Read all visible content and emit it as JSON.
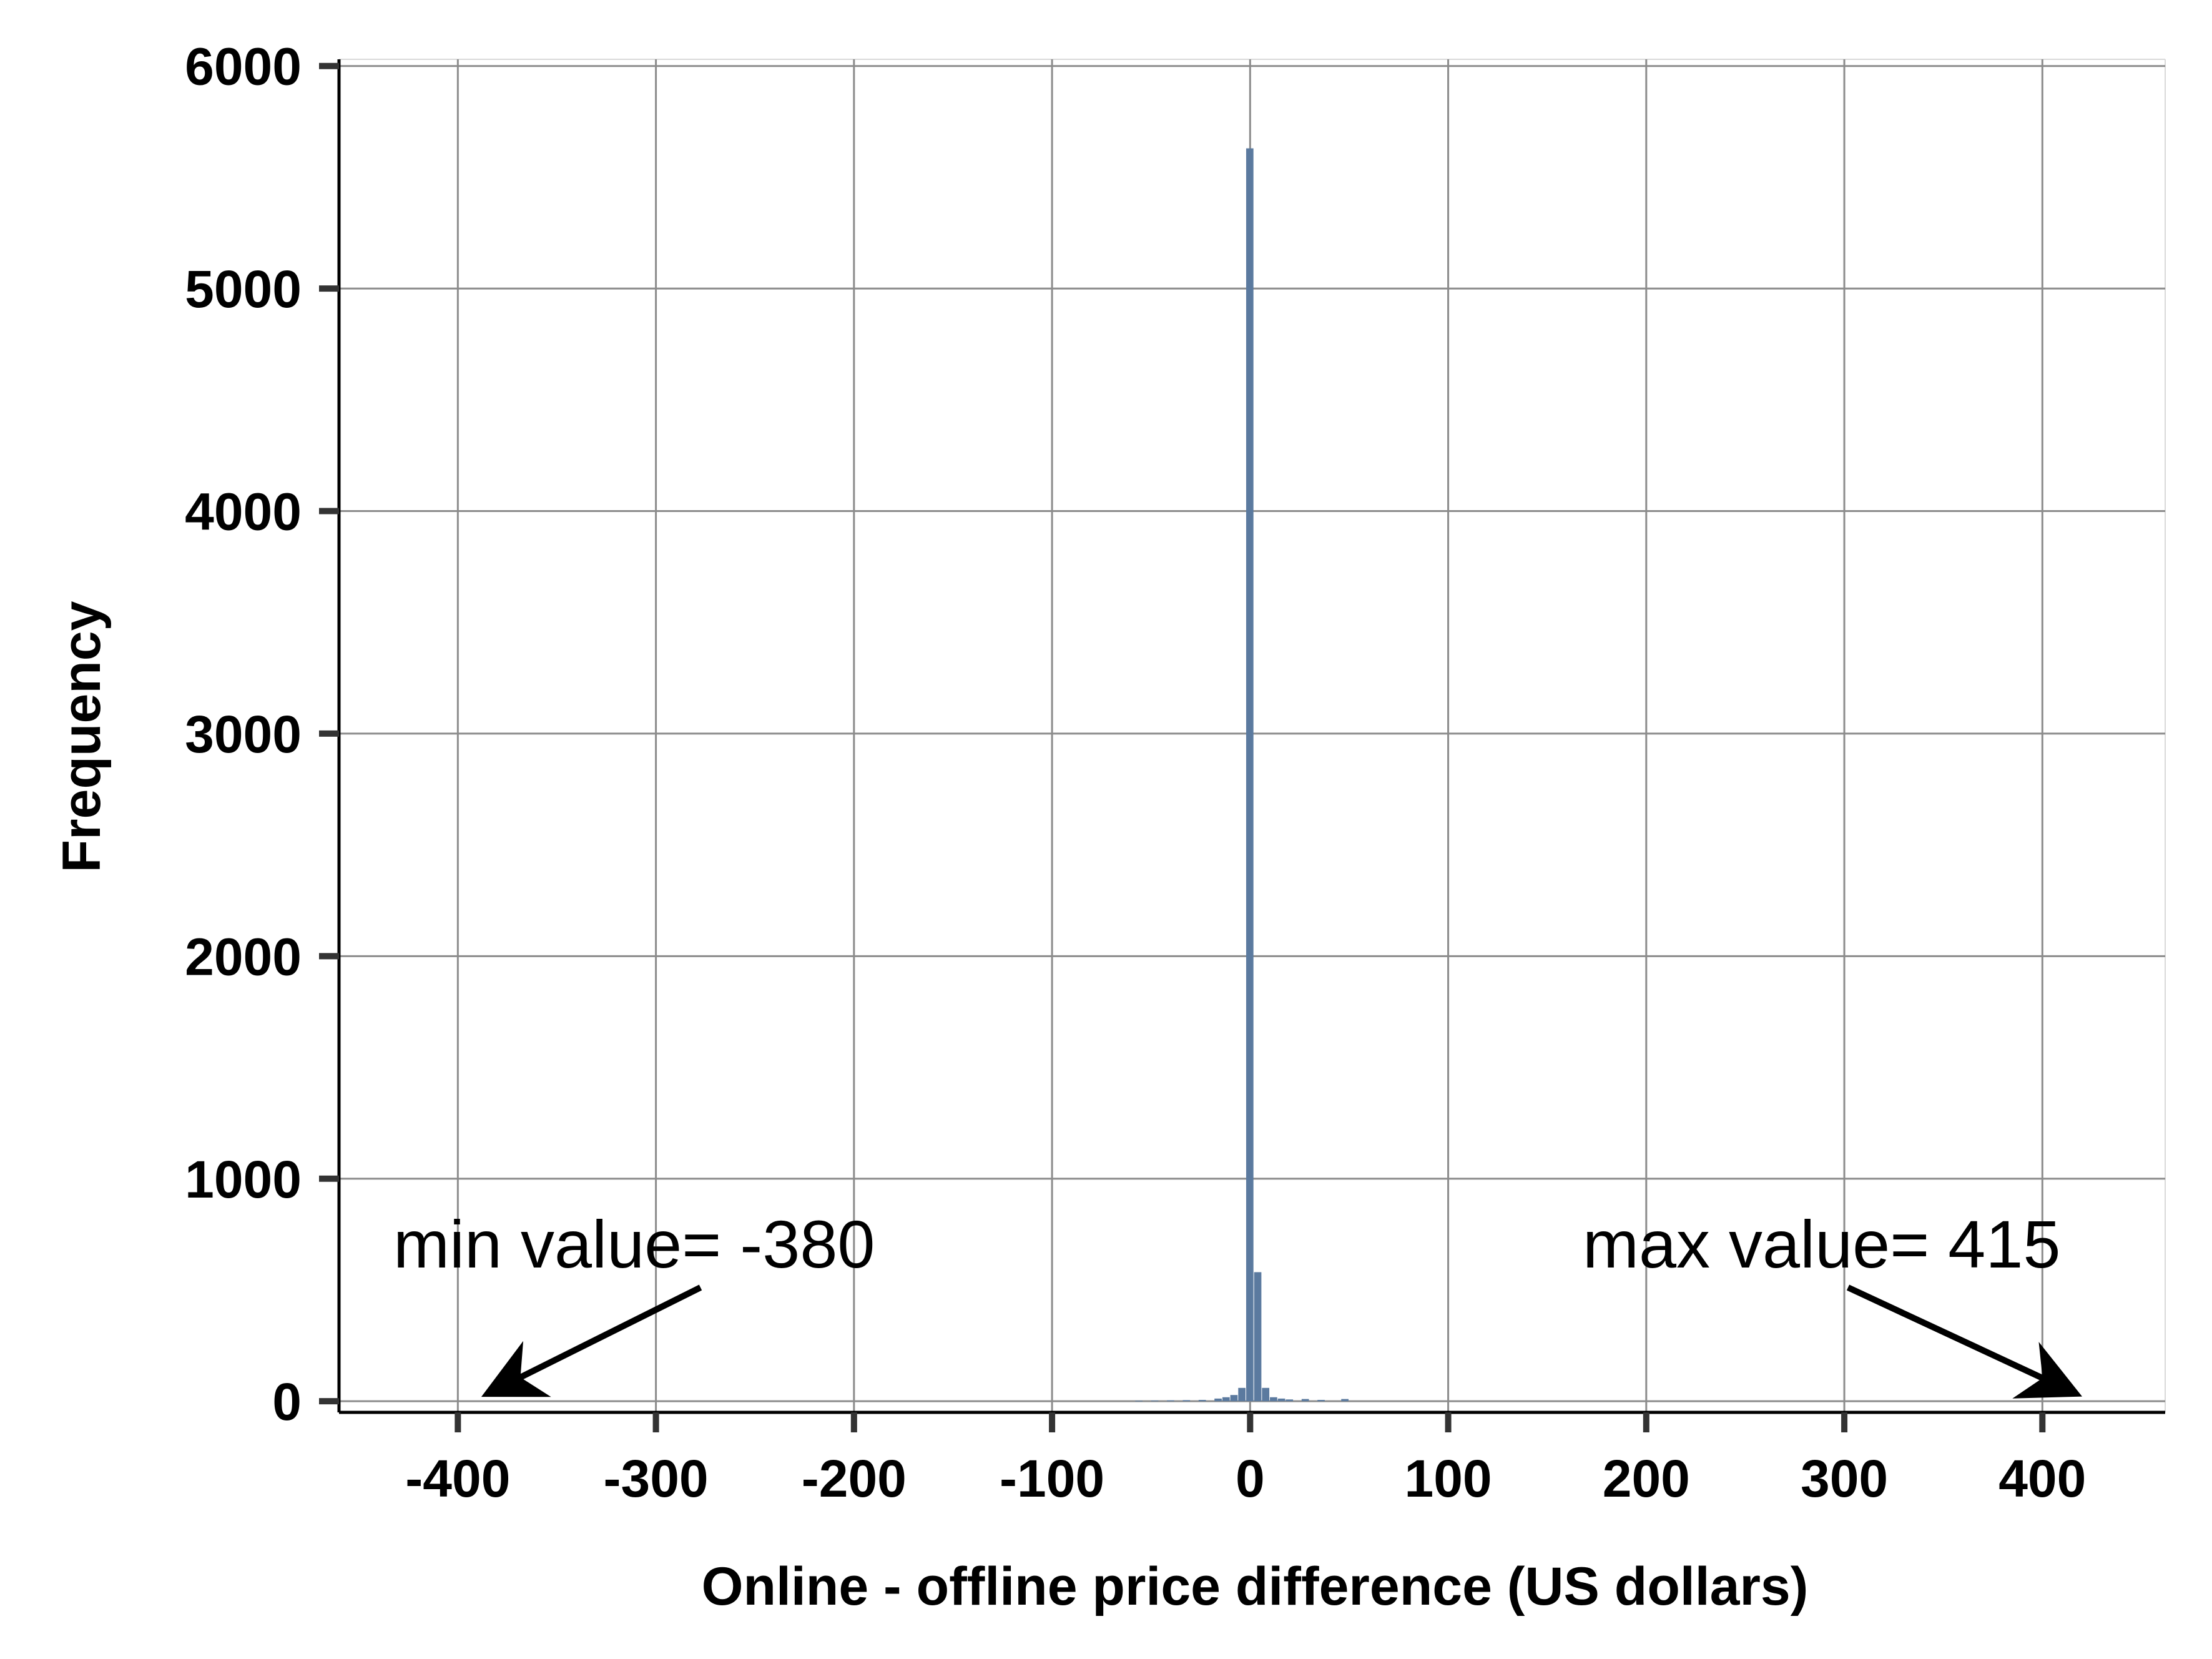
{
  "chart_data": {
    "type": "bar",
    "title": "",
    "xlabel": "Online - offline price difference (US dollars)",
    "ylabel": "Frequency",
    "xlim": [
      -460,
      462
    ],
    "ylim": [
      -50,
      6030
    ],
    "xticks": [
      -400,
      -300,
      -200,
      -100,
      0,
      100,
      200,
      300,
      400
    ],
    "yticks": [
      0,
      1000,
      2000,
      3000,
      4000,
      5000,
      6000
    ],
    "grid": true,
    "bar_color": "#5b7a9f",
    "bin_width": 4,
    "bins": [
      {
        "x": -56,
        "y": 2
      },
      {
        "x": -48,
        "y": 3
      },
      {
        "x": -40,
        "y": 4
      },
      {
        "x": -32,
        "y": 5
      },
      {
        "x": -24,
        "y": 6
      },
      {
        "x": -16,
        "y": 12
      },
      {
        "x": -12,
        "y": 18
      },
      {
        "x": -8,
        "y": 28
      },
      {
        "x": -4,
        "y": 60
      },
      {
        "x": 0,
        "y": 5630
      },
      {
        "x": 4,
        "y": 580
      },
      {
        "x": 8,
        "y": 60
      },
      {
        "x": 12,
        "y": 18
      },
      {
        "x": 16,
        "y": 12
      },
      {
        "x": 20,
        "y": 8
      },
      {
        "x": 28,
        "y": 10
      },
      {
        "x": 36,
        "y": 6
      },
      {
        "x": 48,
        "y": 10
      }
    ],
    "annotations": [
      {
        "text": "min value= -380",
        "target": {
          "x": -380,
          "y": 0
        }
      },
      {
        "text": "max value= 415",
        "target": {
          "x": 415,
          "y": 0
        }
      }
    ]
  }
}
